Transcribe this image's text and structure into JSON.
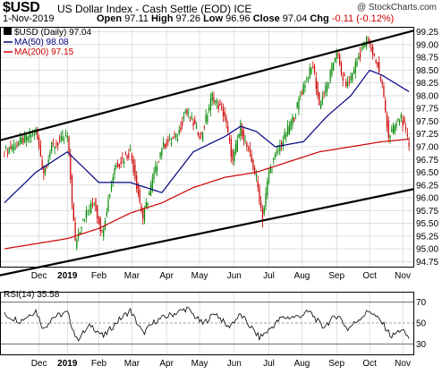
{
  "header": {
    "ticker": "$USD",
    "description": "US Dollar Index - Cash Settle (EOD)",
    "exchange": "ICE",
    "copyright": "@ StockCharts.com",
    "date": "1-Nov-2019",
    "open_label": "Open",
    "open": "97.11",
    "high_label": "High",
    "high": "97.26",
    "low_label": "Low",
    "low": "96.96",
    "close_label": "Close",
    "close": "97.04",
    "chg_label": "Chg",
    "chg": "-0.11 (-0.12%)"
  },
  "legend": {
    "price": "$USD (Daily) 97.04",
    "ma50": "MA(50) 98.08",
    "ma200": "MA(200) 97.15",
    "rsi": "RSI(14) 35.58"
  },
  "colors": {
    "up": "#008800",
    "down": "#cc0000",
    "ma50": "#000080",
    "ma200": "#cc0000",
    "channel": "#000000",
    "rsi": "#000000",
    "grid": "#cccccc"
  },
  "chart_data": [
    {
      "type": "candlestick",
      "title": "$USD (Daily) 97.04",
      "ylim": [
        94.65,
        99.35
      ],
      "y_ticks": [
        "94.75",
        "95.00",
        "95.25",
        "95.50",
        "95.75",
        "96.00",
        "96.25",
        "96.50",
        "96.75",
        "97.00",
        "97.25",
        "97.50",
        "97.75",
        "98.00",
        "98.25",
        "98.50",
        "98.75",
        "99.00",
        "99.25"
      ],
      "x_ticks": [
        "Dec",
        "2019",
        "Feb",
        "Mar",
        "Apr",
        "May",
        "Jun",
        "Jul",
        "Aug",
        "Sep",
        "Oct",
        "Nov"
      ],
      "x_tick_index": [
        22,
        40,
        60,
        81,
        103,
        124,
        146,
        168,
        189,
        211,
        232,
        253
      ],
      "n_days": 258,
      "series": [
        {
          "name": "$USD (Daily) 97.04",
          "values": [
            {
              "i": 0,
              "close": 96.9
            },
            {
              "i": 10,
              "close": 97.1
            },
            {
              "i": 20,
              "close": 97.3
            },
            {
              "i": 25,
              "close": 96.5
            },
            {
              "i": 30,
              "close": 97.0
            },
            {
              "i": 40,
              "close": 97.2
            },
            {
              "i": 45,
              "close": 95.1
            },
            {
              "i": 50,
              "close": 95.6
            },
            {
              "i": 57,
              "close": 95.9
            },
            {
              "i": 62,
              "close": 95.3
            },
            {
              "i": 70,
              "close": 96.6
            },
            {
              "i": 80,
              "close": 96.9
            },
            {
              "i": 88,
              "close": 95.6
            },
            {
              "i": 92,
              "close": 96.1
            },
            {
              "i": 100,
              "close": 97.0
            },
            {
              "i": 110,
              "close": 97.2
            },
            {
              "i": 115,
              "close": 97.7
            },
            {
              "i": 125,
              "close": 97.2
            },
            {
              "i": 132,
              "close": 98.0
            },
            {
              "i": 140,
              "close": 97.6
            },
            {
              "i": 145,
              "close": 96.7
            },
            {
              "i": 150,
              "close": 97.4
            },
            {
              "i": 160,
              "close": 96.4
            },
            {
              "i": 164,
              "close": 95.6
            },
            {
              "i": 168,
              "close": 96.5
            },
            {
              "i": 172,
              "close": 96.8
            },
            {
              "i": 178,
              "close": 97.2
            },
            {
              "i": 184,
              "close": 97.6
            },
            {
              "i": 190,
              "close": 98.2
            },
            {
              "i": 196,
              "close": 98.6
            },
            {
              "i": 200,
              "close": 97.8
            },
            {
              "i": 206,
              "close": 98.3
            },
            {
              "i": 211,
              "close": 98.9
            },
            {
              "i": 214,
              "close": 98.4
            },
            {
              "i": 218,
              "close": 98.2
            },
            {
              "i": 224,
              "close": 98.7
            },
            {
              "i": 230,
              "close": 99.1
            },
            {
              "i": 236,
              "close": 98.7
            },
            {
              "i": 240,
              "close": 98.2
            },
            {
              "i": 244,
              "close": 97.2
            },
            {
              "i": 248,
              "close": 97.4
            },
            {
              "i": 252,
              "close": 97.6
            },
            {
              "i": 257,
              "close": 97.04
            }
          ]
        },
        {
          "name": "MA(50) 98.08",
          "values": [
            {
              "i": 0,
              "close": 95.9
            },
            {
              "i": 20,
              "close": 96.5
            },
            {
              "i": 40,
              "close": 96.9
            },
            {
              "i": 60,
              "close": 96.3
            },
            {
              "i": 80,
              "close": 96.3
            },
            {
              "i": 100,
              "close": 96.1
            },
            {
              "i": 120,
              "close": 96.9
            },
            {
              "i": 140,
              "close": 97.2
            },
            {
              "i": 150,
              "close": 97.4
            },
            {
              "i": 160,
              "close": 97.3
            },
            {
              "i": 172,
              "close": 97.0
            },
            {
              "i": 190,
              "close": 97.1
            },
            {
              "i": 205,
              "close": 97.6
            },
            {
              "i": 220,
              "close": 98.0
            },
            {
              "i": 232,
              "close": 98.5
            },
            {
              "i": 240,
              "close": 98.4
            },
            {
              "i": 257,
              "close": 98.08
            }
          ]
        },
        {
          "name": "MA(200) 97.15",
          "values": [
            {
              "i": 0,
              "close": 95.0
            },
            {
              "i": 20,
              "close": 95.1
            },
            {
              "i": 40,
              "close": 95.2
            },
            {
              "i": 60,
              "close": 95.4
            },
            {
              "i": 80,
              "close": 95.7
            },
            {
              "i": 100,
              "close": 95.9
            },
            {
              "i": 120,
              "close": 96.2
            },
            {
              "i": 140,
              "close": 96.4
            },
            {
              "i": 160,
              "close": 96.5
            },
            {
              "i": 180,
              "close": 96.7
            },
            {
              "i": 200,
              "close": 96.9
            },
            {
              "i": 220,
              "close": 97.0
            },
            {
              "i": 240,
              "close": 97.1
            },
            {
              "i": 257,
              "close": 97.15
            }
          ]
        }
      ],
      "channel": {
        "upper": {
          "start": {
            "i": 0,
            "y": 97.15
          },
          "end": {
            "i": 257,
            "y": 99.25
          }
        },
        "lower": {
          "start": {
            "i": 0,
            "y": 94.5
          },
          "end": {
            "i": 257,
            "y": 96.15
          }
        }
      }
    },
    {
      "type": "line",
      "title": "RSI(14) 35.58",
      "ylim": [
        20,
        80
      ],
      "y_ticks": [
        "30",
        "50",
        "70"
      ],
      "x_ticks": [
        "Dec",
        "2019",
        "Feb",
        "Mar",
        "Apr",
        "May",
        "Jun",
        "Jul",
        "Aug",
        "Sep",
        "Oct",
        "Nov"
      ],
      "reference_lines": [
        30,
        50,
        70
      ],
      "series": [
        {
          "name": "RSI(14) 35.58",
          "values": [
            {
              "i": 0,
              "y": 58
            },
            {
              "i": 10,
              "y": 52
            },
            {
              "i": 20,
              "y": 62
            },
            {
              "i": 25,
              "y": 44
            },
            {
              "i": 30,
              "y": 55
            },
            {
              "i": 40,
              "y": 60
            },
            {
              "i": 46,
              "y": 34
            },
            {
              "i": 55,
              "y": 48
            },
            {
              "i": 63,
              "y": 37
            },
            {
              "i": 72,
              "y": 52
            },
            {
              "i": 80,
              "y": 62
            },
            {
              "i": 88,
              "y": 40
            },
            {
              "i": 96,
              "y": 52
            },
            {
              "i": 106,
              "y": 58
            },
            {
              "i": 116,
              "y": 64
            },
            {
              "i": 126,
              "y": 49
            },
            {
              "i": 134,
              "y": 60
            },
            {
              "i": 142,
              "y": 46
            },
            {
              "i": 150,
              "y": 58
            },
            {
              "i": 162,
              "y": 36
            },
            {
              "i": 167,
              "y": 42
            },
            {
              "i": 176,
              "y": 55
            },
            {
              "i": 186,
              "y": 56
            },
            {
              "i": 194,
              "y": 61
            },
            {
              "i": 202,
              "y": 46
            },
            {
              "i": 212,
              "y": 58
            },
            {
              "i": 218,
              "y": 44
            },
            {
              "i": 226,
              "y": 55
            },
            {
              "i": 232,
              "y": 62
            },
            {
              "i": 240,
              "y": 50
            },
            {
              "i": 246,
              "y": 37
            },
            {
              "i": 252,
              "y": 44
            },
            {
              "i": 257,
              "y": 35.58
            }
          ]
        }
      ]
    }
  ]
}
